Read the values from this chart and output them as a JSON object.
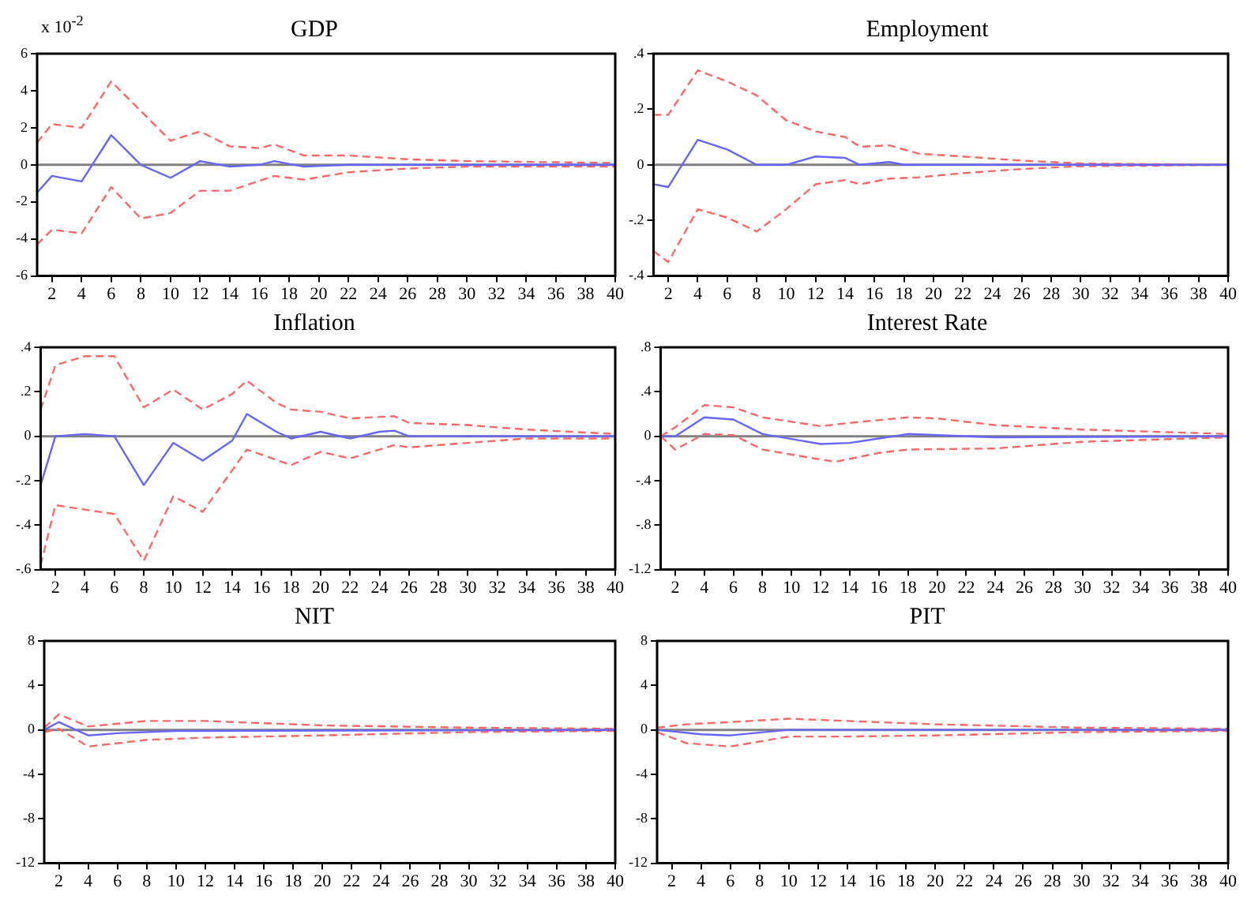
{
  "chart_data": [
    {
      "type": "line",
      "title": "GDP",
      "annotations": [
        "x 10$^{-2}$"
      ],
      "xlim": [
        1,
        40
      ],
      "xticks": [
        2,
        4,
        6,
        8,
        10,
        12,
        14,
        16,
        18,
        20,
        22,
        24,
        26,
        28,
        30,
        32,
        34,
        36,
        38,
        40
      ],
      "ylim": [
        -6,
        6
      ],
      "yticks": [
        6,
        4,
        2,
        0,
        -2,
        -4,
        -6
      ],
      "grid": false,
      "legend": false,
      "ref_lines": [
        {
          "axis": "y",
          "value": 0,
          "color": "#808080"
        }
      ],
      "series": [
        {
          "color": "#6666ff",
          "line_style": "solid",
          "x": [
            1,
            2,
            4,
            6,
            8,
            10,
            12,
            14,
            16,
            17,
            19,
            22,
            40
          ],
          "values": [
            -1.5,
            -0.6,
            -0.9,
            1.6,
            0,
            -0.7,
            0.2,
            -0.1,
            0,
            0.2,
            -0.1,
            0,
            0
          ]
        },
        {
          "color": "#ff6666",
          "line_style": "dashed",
          "x": [
            1,
            2,
            4,
            6,
            10,
            12,
            14,
            16,
            17,
            19,
            22,
            26,
            30,
            40
          ],
          "values": [
            1.2,
            2.2,
            2.0,
            4.5,
            1.3,
            1.8,
            1.0,
            0.9,
            1.1,
            0.5,
            0.5,
            0.3,
            0.2,
            0.1
          ]
        },
        {
          "color": "#ff6666",
          "line_style": "dashed",
          "x": [
            1,
            2,
            4,
            6,
            8,
            10,
            12,
            14,
            17,
            19,
            22,
            26,
            30,
            40
          ],
          "values": [
            -4.3,
            -3.5,
            -3.7,
            -1.2,
            -2.9,
            -2.6,
            -1.4,
            -1.4,
            -0.6,
            -0.8,
            -0.4,
            -0.2,
            -0.1,
            -0.1
          ]
        }
      ]
    },
    {
      "type": "line",
      "title": "Employment",
      "xlim": [
        1,
        40
      ],
      "xticks": [
        2,
        4,
        6,
        8,
        10,
        12,
        14,
        16,
        18,
        20,
        22,
        24,
        26,
        28,
        30,
        32,
        34,
        36,
        38,
        40
      ],
      "ylim": [
        -0.4,
        0.4
      ],
      "yticks": [
        {
          "value": 0.4,
          "label": ".4"
        },
        {
          "value": 0.2,
          "label": ".2"
        },
        0,
        {
          "value": -0.2,
          "label": "-.2"
        },
        {
          "value": -0.4,
          "label": "-.4"
        }
      ],
      "grid": false,
      "legend": false,
      "ref_lines": [
        {
          "axis": "y",
          "value": 0,
          "color": "#808080"
        }
      ],
      "series": [
        {
          "color": "#6666ff",
          "line_style": "solid",
          "x": [
            1,
            2,
            4,
            6,
            8,
            10,
            12,
            14,
            15,
            17,
            18,
            40
          ],
          "values": [
            -0.07,
            -0.08,
            0.09,
            0.055,
            0,
            0,
            0.03,
            0.025,
            0,
            0.01,
            0,
            0
          ]
        },
        {
          "color": "#ff6666",
          "line_style": "dashed",
          "x": [
            1,
            2,
            4,
            6,
            8,
            10,
            12,
            14,
            15,
            17,
            19,
            22,
            26,
            30,
            40
          ],
          "values": [
            0.18,
            0.18,
            0.34,
            0.3,
            0.25,
            0.16,
            0.12,
            0.1,
            0.065,
            0.07,
            0.04,
            0.03,
            0.015,
            0.005,
            0
          ]
        },
        {
          "color": "#ff6666",
          "line_style": "dashed",
          "x": [
            1,
            2,
            4,
            6,
            8,
            10,
            12,
            14,
            15,
            17,
            19,
            22,
            26,
            30,
            40
          ],
          "values": [
            -0.31,
            -0.35,
            -0.16,
            -0.19,
            -0.24,
            -0.16,
            -0.07,
            -0.055,
            -0.07,
            -0.05,
            -0.045,
            -0.03,
            -0.015,
            -0.005,
            0
          ]
        }
      ]
    },
    {
      "type": "line",
      "title": "Inflation",
      "xlim": [
        1,
        40
      ],
      "xticks": [
        2,
        4,
        6,
        8,
        10,
        12,
        14,
        16,
        18,
        20,
        22,
        24,
        26,
        28,
        30,
        32,
        34,
        36,
        38,
        40
      ],
      "ylim": [
        -0.6,
        0.4
      ],
      "yticks": [
        {
          "value": 0.4,
          "label": ".4"
        },
        {
          "value": 0.2,
          "label": ".2"
        },
        0,
        {
          "value": -0.2,
          "label": "-.2"
        },
        {
          "value": -0.4,
          "label": "-.4"
        },
        {
          "value": -0.6,
          "label": "-.6"
        }
      ],
      "grid": false,
      "legend": false,
      "ref_lines": [
        {
          "axis": "y",
          "value": 0,
          "color": "#808080"
        }
      ],
      "series": [
        {
          "color": "#6666ff",
          "line_style": "solid",
          "x": [
            1,
            2,
            4,
            6,
            8,
            10,
            12,
            14,
            15,
            17,
            18,
            20,
            22,
            24,
            25,
            26,
            40
          ],
          "values": [
            -0.22,
            0,
            0.01,
            0,
            -0.22,
            -0.03,
            -0.11,
            -0.02,
            0.1,
            0.02,
            -0.01,
            0.02,
            -0.01,
            0.02,
            0.025,
            0,
            0
          ]
        },
        {
          "color": "#ff6666",
          "line_style": "dashed",
          "x": [
            1,
            2,
            4,
            6,
            8,
            10,
            12,
            14,
            15,
            17,
            18,
            20,
            22,
            25,
            26,
            30,
            34,
            40
          ],
          "values": [
            0.12,
            0.32,
            0.36,
            0.36,
            0.13,
            0.21,
            0.12,
            0.19,
            0.25,
            0.15,
            0.12,
            0.11,
            0.08,
            0.09,
            0.06,
            0.05,
            0.03,
            0.01
          ]
        },
        {
          "color": "#ff6666",
          "line_style": "dashed",
          "x": [
            1,
            2,
            4,
            6,
            8,
            10,
            12,
            15,
            18,
            20,
            22,
            25,
            26,
            30,
            34,
            40
          ],
          "values": [
            -0.58,
            -0.31,
            -0.33,
            -0.35,
            -0.56,
            -0.27,
            -0.34,
            -0.06,
            -0.13,
            -0.07,
            -0.1,
            -0.04,
            -0.05,
            -0.03,
            -0.01,
            -0.01
          ]
        }
      ]
    },
    {
      "type": "line",
      "title": "Interest Rate",
      "xlim": [
        1,
        40
      ],
      "xticks": [
        2,
        4,
        6,
        8,
        10,
        12,
        14,
        16,
        18,
        20,
        22,
        24,
        26,
        28,
        30,
        32,
        34,
        36,
        38,
        40
      ],
      "ylim": [
        -1.2,
        0.8
      ],
      "yticks": [
        {
          "value": 0.8,
          "label": ".8"
        },
        {
          "value": 0.4,
          "label": ".4"
        },
        0,
        {
          "value": -0.4,
          "label": "-.4"
        },
        {
          "value": -0.8,
          "label": "-.8"
        },
        -1.2
      ],
      "grid": false,
      "legend": false,
      "ref_lines": [
        {
          "axis": "y",
          "value": 0,
          "color": "#808080"
        }
      ],
      "series": [
        {
          "color": "#6666ff",
          "line_style": "solid",
          "x": [
            1,
            2,
            4,
            6,
            8,
            12,
            14,
            16,
            18,
            20,
            24,
            40
          ],
          "values": [
            0,
            0,
            0.17,
            0.15,
            0.02,
            -0.07,
            -0.06,
            -0.02,
            0.02,
            0.01,
            -0.01,
            0
          ]
        },
        {
          "color": "#ff6666",
          "line_style": "dashed",
          "x": [
            1,
            2,
            4,
            6,
            8,
            12,
            14,
            18,
            20,
            24,
            30,
            40
          ],
          "values": [
            0,
            0.08,
            0.28,
            0.26,
            0.17,
            0.09,
            0.12,
            0.17,
            0.16,
            0.1,
            0.06,
            0.02
          ]
        },
        {
          "color": "#ff6666",
          "line_style": "dashed",
          "x": [
            1,
            2,
            4,
            6,
            8,
            12,
            13,
            16,
            18,
            24,
            30,
            40
          ],
          "values": [
            0,
            -0.12,
            0.02,
            0.01,
            -0.12,
            -0.21,
            -0.23,
            -0.15,
            -0.12,
            -0.11,
            -0.05,
            -0.01
          ]
        }
      ]
    },
    {
      "type": "line",
      "title": "NIT",
      "xlim": [
        1,
        40
      ],
      "xticks": [
        2,
        4,
        6,
        8,
        10,
        12,
        14,
        16,
        18,
        20,
        22,
        24,
        26,
        28,
        30,
        32,
        34,
        36,
        38,
        40
      ],
      "ylim": [
        -12,
        8
      ],
      "yticks": [
        8,
        4,
        0,
        -4,
        -8,
        -12
      ],
      "grid": false,
      "legend": false,
      "ref_lines": [
        {
          "axis": "y",
          "value": 0,
          "color": "#808080"
        }
      ],
      "series": [
        {
          "color": "#6666ff",
          "line_style": "solid",
          "x": [
            1,
            2,
            4,
            6,
            10,
            40
          ],
          "values": [
            0,
            0.7,
            -0.5,
            -0.3,
            -0.1,
            0
          ]
        },
        {
          "color": "#ff6666",
          "line_style": "dashed",
          "x": [
            1,
            2,
            4,
            8,
            12,
            20,
            30,
            40
          ],
          "values": [
            0.2,
            1.4,
            0.3,
            0.8,
            0.8,
            0.4,
            0.2,
            0.1
          ]
        },
        {
          "color": "#ff6666",
          "line_style": "dashed",
          "x": [
            1,
            2,
            4,
            8,
            12,
            20,
            30,
            40
          ],
          "values": [
            -0.2,
            0.1,
            -1.5,
            -0.9,
            -0.7,
            -0.5,
            -0.2,
            -0.1
          ]
        }
      ]
    },
    {
      "type": "line",
      "title": "PIT",
      "xlim": [
        1,
        40
      ],
      "xticks": [
        2,
        4,
        6,
        8,
        10,
        12,
        14,
        16,
        18,
        20,
        22,
        24,
        26,
        28,
        30,
        32,
        34,
        36,
        38,
        40
      ],
      "ylim": [
        -12,
        8
      ],
      "yticks": [
        8,
        4,
        0,
        -4,
        -8,
        -12
      ],
      "grid": false,
      "legend": false,
      "ref_lines": [
        {
          "axis": "y",
          "value": 0,
          "color": "#808080"
        }
      ],
      "series": [
        {
          "color": "#6666ff",
          "line_style": "solid",
          "x": [
            1,
            4,
            6,
            10,
            14,
            40
          ],
          "values": [
            0,
            -0.4,
            -0.5,
            0,
            0,
            0
          ]
        },
        {
          "color": "#ff6666",
          "line_style": "dashed",
          "x": [
            1,
            3,
            6,
            10,
            14,
            20,
            30,
            40
          ],
          "values": [
            0.2,
            0.5,
            0.7,
            1,
            0.8,
            0.5,
            0.2,
            0.1
          ]
        },
        {
          "color": "#ff6666",
          "line_style": "dashed",
          "x": [
            1,
            3,
            6,
            10,
            14,
            20,
            30,
            40
          ],
          "values": [
            -0.2,
            -1.2,
            -1.5,
            -0.6,
            -0.6,
            -0.5,
            -0.2,
            -0.1
          ]
        }
      ]
    }
  ]
}
